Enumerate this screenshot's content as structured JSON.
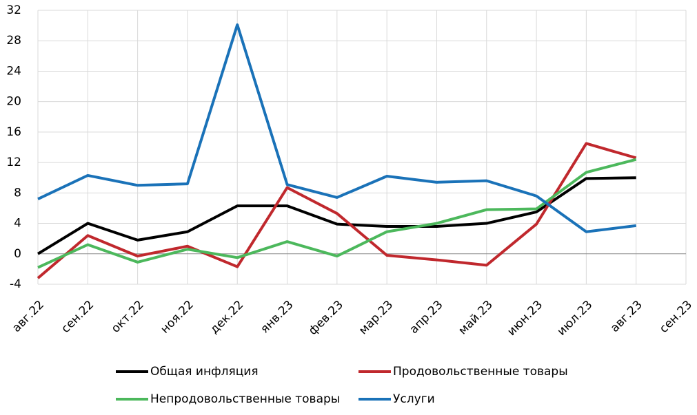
{
  "chart_data": {
    "type": "line",
    "categories": [
      "авг.22",
      "сен.22",
      "окт.22",
      "ноя.22",
      "дек.22",
      "янв.23",
      "фев.23",
      "мар.23",
      "апр.23",
      "май.23",
      "июн.23",
      "июл.23",
      "авг.23",
      "сен.23"
    ],
    "series": [
      {
        "name": "Общая инфляция",
        "color": "#000000",
        "values": [
          0,
          4.0,
          1.8,
          2.9,
          6.3,
          6.3,
          3.9,
          3.6,
          3.6,
          4.0,
          5.5,
          9.9,
          10.0,
          null
        ]
      },
      {
        "name": "Продовольственные товары",
        "color": "#c0282d",
        "values": [
          -3.2,
          2.4,
          -0.3,
          1.0,
          -1.7,
          8.7,
          5.3,
          -0.2,
          -0.8,
          -1.5,
          3.9,
          14.5,
          12.6,
          null
        ]
      },
      {
        "name": "Непродовольственные товары",
        "color": "#4cb85c",
        "values": [
          -1.8,
          1.2,
          -1.1,
          0.6,
          -0.5,
          1.6,
          -0.3,
          2.9,
          4.0,
          5.8,
          5.9,
          10.7,
          12.4,
          null
        ]
      },
      {
        "name": "Услуги",
        "color": "#1a72b8",
        "values": [
          7.2,
          10.3,
          9.0,
          9.2,
          30.1,
          9.1,
          7.4,
          10.2,
          9.4,
          9.6,
          7.6,
          2.9,
          3.7,
          null
        ]
      }
    ],
    "ylim": [
      -4,
      32
    ],
    "yticks": [
      -4,
      0,
      4,
      8,
      12,
      16,
      20,
      24,
      28,
      32
    ],
    "grid": true
  }
}
